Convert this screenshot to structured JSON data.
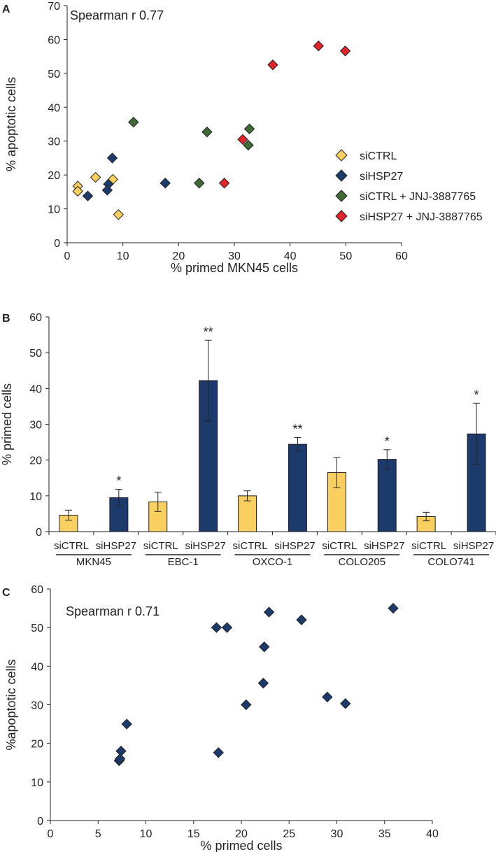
{
  "chart_data": [
    {
      "panel": "A",
      "type": "scatter",
      "annotation": "Spearman r   0.77",
      "xlabel": "% primed MKN45 cells",
      "ylabel": "% apoptotic cells",
      "xlim": [
        0,
        60
      ],
      "ylim": [
        0,
        70
      ],
      "xticks": [
        0,
        10,
        20,
        30,
        40,
        50,
        60
      ],
      "yticks": [
        0,
        10,
        20,
        30,
        40,
        50,
        60,
        70
      ],
      "legend_position": "right",
      "series": [
        {
          "name": "siCTRL",
          "color": "#f9d060",
          "points": [
            [
              1.9,
              16.7
            ],
            [
              1.9,
              15.2
            ],
            [
              5.1,
              19.3
            ],
            [
              8.2,
              18.7
            ],
            [
              9.2,
              8.3
            ]
          ]
        },
        {
          "name": "siHSP27",
          "color": "#1c3a6b",
          "points": [
            [
              3.7,
              13.8
            ],
            [
              7.4,
              17.3
            ],
            [
              7.2,
              15.5
            ],
            [
              8.1,
              25.0
            ],
            [
              17.6,
              17.6
            ]
          ]
        },
        {
          "name": "siCTRL + JNJ-3887765",
          "color": "#3f6a35",
          "points": [
            [
              11.9,
              35.6
            ],
            [
              25.1,
              32.7
            ],
            [
              32.7,
              33.6
            ],
            [
              32.5,
              28.8
            ],
            [
              23.7,
              17.6
            ]
          ]
        },
        {
          "name": "siHSP27 + JNJ-3887765",
          "color": "#e0242a",
          "points": [
            [
              31.5,
              30.5
            ],
            [
              28.2,
              17.6
            ],
            [
              36.9,
              52.5
            ],
            [
              45.1,
              58.1
            ],
            [
              49.9,
              56.6
            ]
          ]
        }
      ]
    },
    {
      "panel": "B",
      "type": "bar",
      "ylabel": "% primed cells",
      "ylim": [
        0,
        60
      ],
      "yticks": [
        0,
        10,
        20,
        30,
        40,
        50,
        60
      ],
      "groups": [
        "MKN45",
        "EBC-1",
        "OXCO-1",
        "COLO205",
        "COLO741"
      ],
      "categories": [
        "siCTRL",
        "siHSP27",
        "siCTRL",
        "siHSP27",
        "siCTRL",
        "siHSP27",
        "siCTRL",
        "siHSP27",
        "siCTRL",
        "siHSP27"
      ],
      "values": [
        4.6,
        9.5,
        8.3,
        42.2,
        10.0,
        24.4,
        16.5,
        20.2,
        4.2,
        27.3
      ],
      "errors": [
        1.4,
        2.3,
        2.7,
        11.3,
        1.4,
        1.9,
        4.2,
        2.7,
        1.2,
        8.6
      ],
      "significance": [
        "",
        "*",
        "",
        "**",
        "",
        "**",
        "",
        "*",
        "",
        "*"
      ],
      "colors": {
        "siCTRL": "#f9d060",
        "siHSP27": "#1c3a6b"
      }
    },
    {
      "panel": "C",
      "type": "scatter",
      "annotation": "Spearman r   0.71",
      "xlabel": "% primed cells",
      "ylabel": "%apoptotic cells",
      "xlim": [
        0,
        40
      ],
      "ylim": [
        0,
        60
      ],
      "xticks": [
        0,
        5,
        10,
        15,
        20,
        25,
        30,
        35,
        40
      ],
      "yticks": [
        0,
        10,
        20,
        30,
        40,
        50,
        60
      ],
      "series": [
        {
          "color": "#1c3a6b",
          "points": [
            [
              7.2,
              15.5
            ],
            [
              7.3,
              16.0
            ],
            [
              7.4,
              18.0
            ],
            [
              8.0,
              25.0
            ],
            [
              17.4,
              50.0
            ],
            [
              18.5,
              50.0
            ],
            [
              22.9,
              54.0
            ],
            [
              26.3,
              52.0
            ],
            [
              22.4,
              45.0
            ],
            [
              22.3,
              35.6
            ],
            [
              20.5,
              30.0
            ],
            [
              17.6,
              17.6
            ],
            [
              29.0,
              32.0
            ],
            [
              30.9,
              30.3
            ],
            [
              35.9,
              55.0
            ]
          ]
        }
      ]
    }
  ]
}
